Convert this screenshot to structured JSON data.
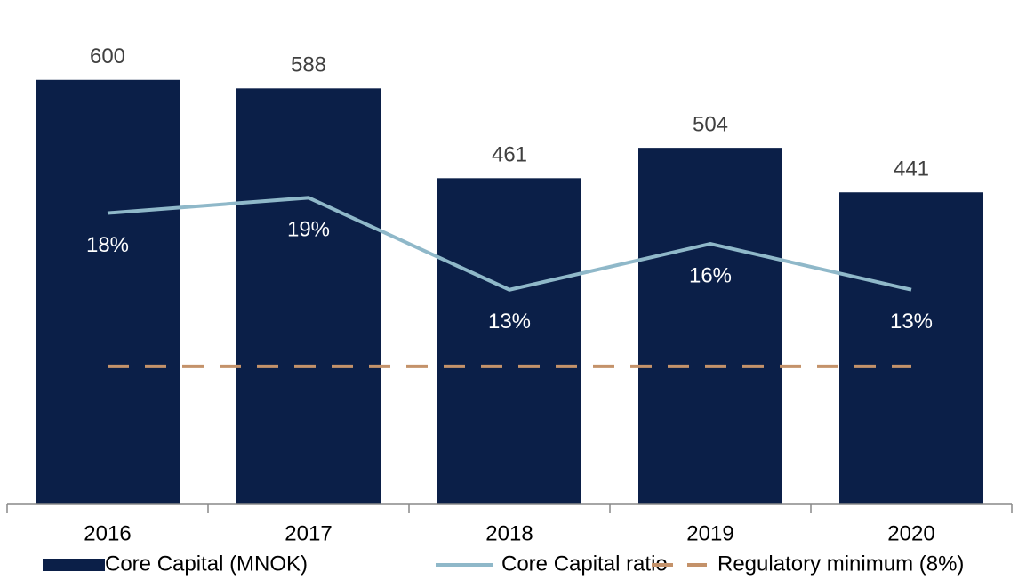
{
  "chart_data": {
    "type": "bar_line",
    "categories": [
      "2016",
      "2017",
      "2018",
      "2019",
      "2020"
    ],
    "ylim": [
      0,
      650
    ],
    "y2lim": [
      -1,
      29
    ],
    "series": [
      {
        "name": "Core Capital (MNOK)",
        "type": "bar",
        "color": "#0b1f48",
        "values": [
          600,
          588,
          461,
          504,
          441
        ]
      },
      {
        "name": "Core Capital ratio",
        "type": "line",
        "axis": "y2",
        "color": "#8fb8c9",
        "values": [
          18,
          19,
          13,
          16,
          13
        ],
        "value_labels": [
          "18%",
          "19%",
          "13%",
          "16%",
          "13%"
        ]
      },
      {
        "name": "Regulatory minimum (8%)",
        "type": "line",
        "axis": "y2",
        "style": "dashed",
        "color": "#c4926a",
        "values": [
          8,
          8,
          8,
          8,
          8
        ]
      }
    ],
    "legend": "bottom"
  }
}
